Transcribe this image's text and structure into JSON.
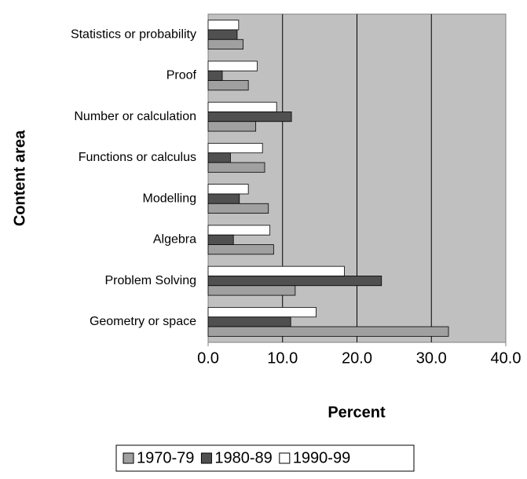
{
  "chart_data": {
    "type": "bar",
    "orientation": "horizontal",
    "x_label": "Percent",
    "y_label": "Content area",
    "categories": [
      "Statistics or probability",
      "Proof",
      "Number or calculation",
      "Functions or calculus",
      "Modelling",
      "Algebra",
      "Problem Solving",
      "Geometry or space"
    ],
    "series": [
      {
        "name": "1970-79",
        "color": "#a0a0a0",
        "values": [
          4.7,
          5.4,
          6.4,
          7.6,
          8.1,
          8.8,
          11.7,
          32.3
        ]
      },
      {
        "name": "1980-89",
        "color": "#505050",
        "values": [
          3.9,
          1.9,
          11.2,
          3.0,
          4.2,
          3.4,
          23.3,
          11.1
        ]
      },
      {
        "name": "1990-99",
        "color": "#ffffff",
        "values": [
          4.1,
          6.6,
          9.2,
          7.3,
          5.4,
          8.3,
          18.3,
          14.5
        ]
      }
    ],
    "xlim": [
      0,
      40
    ],
    "xticks": [
      {
        "value": 0,
        "label": "0.0"
      },
      {
        "value": 10,
        "label": "10.0"
      },
      {
        "value": 20,
        "label": "20.0"
      },
      {
        "value": 30,
        "label": "30.0"
      },
      {
        "value": 40,
        "label": "40.0"
      }
    ],
    "grid": true,
    "legend": "bottom",
    "plot_background": "#c0c0c0"
  }
}
